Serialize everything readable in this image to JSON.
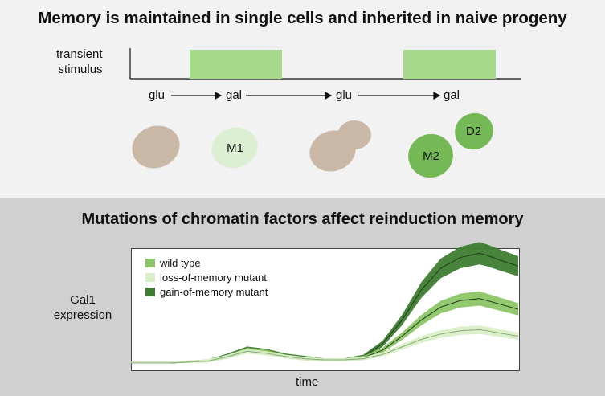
{
  "top": {
    "title": "Memory is maintained in single cells and inherited in naive progeny",
    "stimulus_label_line1": "transient",
    "stimulus_label_line2": "stimulus",
    "conditions": [
      "glu",
      "gal",
      "glu",
      "gal"
    ],
    "cells": {
      "m1": "M1",
      "m2": "M2",
      "d2": "D2"
    }
  },
  "bottom": {
    "title": "Mutations of chromatin factors affect reinduction memory",
    "ylabel_line1": "Gal1",
    "ylabel_line2": "expression",
    "xlabel": "time"
  },
  "colors": {
    "stimulus": "#a6d98a",
    "cell_tan": "#c9b8a6",
    "cell_m1": "#dcefd2",
    "cell_green": "#74b956",
    "wild_type": "#8cc566",
    "loss_of_memory": "#d9efc8",
    "gain_of_memory": "#3e7d31"
  },
  "chart_data": {
    "type": "line",
    "xlabel": "time",
    "ylabel": "Gal1 expression",
    "legend_position": "top-left",
    "x": [
      0,
      0.1,
      0.2,
      0.25,
      0.3,
      0.35,
      0.4,
      0.45,
      0.5,
      0.55,
      0.6,
      0.65,
      0.7,
      0.75,
      0.8,
      0.85,
      0.9,
      0.92,
      0.95,
      1.0
    ],
    "series": [
      {
        "name": "wild type",
        "color": "#8cc566",
        "values": [
          0.0,
          0.0,
          0.02,
          0.06,
          0.12,
          0.1,
          0.06,
          0.04,
          0.03,
          0.03,
          0.05,
          0.12,
          0.25,
          0.4,
          0.52,
          0.58,
          0.6,
          0.58,
          0.55,
          0.5
        ]
      },
      {
        "name": "loss-of-memory mutant",
        "color": "#d9efc8",
        "values": [
          0.0,
          0.0,
          0.02,
          0.06,
          0.11,
          0.09,
          0.06,
          0.04,
          0.03,
          0.03,
          0.04,
          0.08,
          0.15,
          0.22,
          0.27,
          0.3,
          0.31,
          0.3,
          0.28,
          0.25
        ]
      },
      {
        "name": "gain-of-memory mutant",
        "color": "#3e7d31",
        "values": [
          0.0,
          0.0,
          0.02,
          0.07,
          0.13,
          0.11,
          0.07,
          0.05,
          0.03,
          0.03,
          0.06,
          0.18,
          0.4,
          0.68,
          0.88,
          0.98,
          1.02,
          1.0,
          0.96,
          0.9
        ]
      }
    ]
  }
}
